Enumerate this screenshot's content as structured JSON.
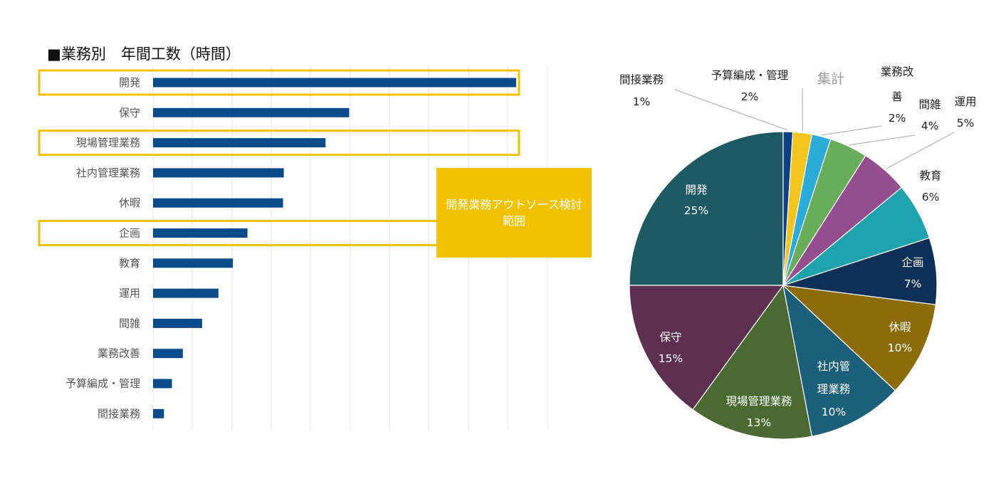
{
  "bar_title": "■業務別　年間工数（時間）",
  "callout_text": "開発業務アウトソース検討範囲",
  "chart_data": [
    {
      "type": "bar",
      "orientation": "horizontal",
      "title": "■業務別　年間工数（時間）",
      "categories": [
        "開発",
        "保守",
        "現場管理業務",
        "社内管理業務",
        "休暇",
        "企画",
        "教育",
        "運用",
        "間雑",
        "業務改善",
        "予算編成・管理",
        "間接業務"
      ],
      "values": [
        100,
        54,
        47.5,
        36,
        35.8,
        26,
        22,
        18,
        13.5,
        8.2,
        5.2,
        3
      ],
      "xlim": [
        0,
        100
      ],
      "grid": true,
      "bar_color": "#0a4b8c",
      "highlighted_categories": [
        "開発",
        "現場管理業務",
        "企画"
      ],
      "highlight_color": "#f2c200"
    },
    {
      "type": "pie",
      "title": "集計",
      "slices": [
        {
          "label": "開発",
          "value": 25,
          "text": "25%",
          "color": "#1e5a63"
        },
        {
          "label": "保守",
          "value": 15,
          "text": "15%",
          "color": "#5d2f50"
        },
        {
          "label": "現場管理業務",
          "value": 13,
          "text": "13%",
          "color": "#4a6a32"
        },
        {
          "label": "社内管理業務",
          "value": 10,
          "text": "10%",
          "color": "#1b5f7a"
        },
        {
          "label": "休暇",
          "value": 10,
          "text": "10%",
          "color": "#8a6c0b"
        },
        {
          "label": "企画",
          "value": 7,
          "text": "7%",
          "color": "#0d2f58"
        },
        {
          "label": "教育",
          "value": 6,
          "text": "6%",
          "color": "#1ea2ad"
        },
        {
          "label": "運用",
          "value": 5,
          "text": "5%",
          "color": "#944e8f"
        },
        {
          "label": "間雑",
          "value": 4,
          "text": "4%",
          "color": "#68ad5a"
        },
        {
          "label": "業務改善",
          "value": 2,
          "text": "2%",
          "color": "#2aacd9"
        },
        {
          "label": "予算編成・管理",
          "value": 2,
          "text": "2%",
          "color": "#f2c61f"
        },
        {
          "label": "間接業務",
          "value": 1,
          "text": "1%",
          "color": "#0c3f7f"
        }
      ]
    }
  ]
}
